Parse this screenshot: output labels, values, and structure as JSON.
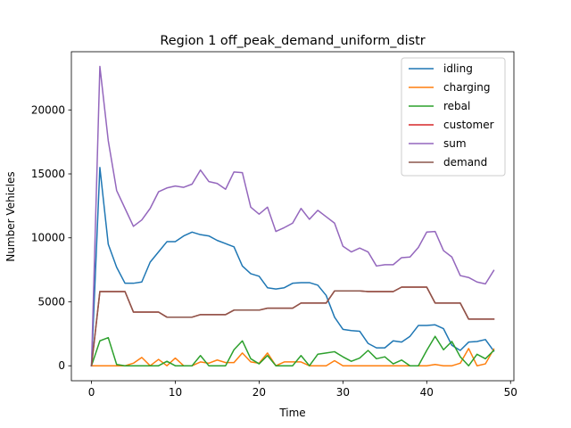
{
  "chart_data": {
    "type": "line",
    "title": "Region 1 off_peak_demand_uniform_distr",
    "xlabel": "Time",
    "ylabel": "Number Vehicles",
    "xlim": [
      -2.4,
      50.4
    ],
    "ylim": [
      -1170,
      24550
    ],
    "x_ticks": [
      0,
      10,
      20,
      30,
      40,
      50
    ],
    "y_ticks": [
      0,
      5000,
      10000,
      15000,
      20000
    ],
    "grid": false,
    "legend_position": "top-right",
    "x": [
      0,
      1,
      2,
      3,
      4,
      5,
      6,
      7,
      8,
      9,
      10,
      11,
      12,
      13,
      14,
      15,
      16,
      17,
      18,
      19,
      20,
      21,
      22,
      23,
      24,
      25,
      26,
      27,
      28,
      29,
      30,
      31,
      32,
      33,
      34,
      35,
      36,
      37,
      38,
      39,
      40,
      41,
      42,
      43,
      44,
      45,
      46,
      47,
      48
    ],
    "series": [
      {
        "name": "idling",
        "color": "#1f77b4",
        "values": [
          0,
          15500,
          9500,
          7700,
          6450,
          6450,
          6550,
          8100,
          8900,
          9700,
          9700,
          10150,
          10450,
          10250,
          10150,
          9800,
          9550,
          9300,
          7800,
          7200,
          7000,
          6100,
          6000,
          6100,
          6450,
          6500,
          6500,
          6300,
          5500,
          3800,
          2850,
          2750,
          2700,
          1750,
          1400,
          1400,
          1950,
          1850,
          2300,
          3150,
          3150,
          3200,
          2900,
          1600,
          1200,
          1850,
          1900,
          2050,
          1150
        ]
      },
      {
        "name": "charging",
        "color": "#ff7f0e",
        "values": [
          0,
          0,
          0,
          0,
          0,
          200,
          650,
          0,
          500,
          0,
          600,
          0,
          0,
          300,
          200,
          450,
          250,
          250,
          1000,
          300,
          200,
          1000,
          0,
          300,
          300,
          300,
          0,
          0,
          0,
          400,
          0,
          0,
          0,
          0,
          0,
          0,
          0,
          0,
          0,
          0,
          0,
          100,
          0,
          0,
          200,
          1350,
          0,
          150,
          1300
        ]
      },
      {
        "name": "rebal",
        "color": "#2ca02c",
        "values": [
          0,
          1950,
          2200,
          100,
          0,
          0,
          0,
          0,
          0,
          350,
          0,
          0,
          0,
          800,
          0,
          0,
          0,
          1250,
          1950,
          550,
          150,
          800,
          0,
          0,
          0,
          800,
          0,
          900,
          1000,
          1100,
          700,
          350,
          600,
          1200,
          550,
          700,
          150,
          450,
          0,
          0,
          1200,
          2300,
          1250,
          1900,
          700,
          0,
          900,
          550,
          1200
        ]
      },
      {
        "name": "customer",
        "color": "#d62728",
        "values": [
          0,
          5800,
          5800,
          5800,
          5800,
          4200,
          4200,
          4200,
          4200,
          3800,
          3800,
          3800,
          3800,
          4000,
          4000,
          4000,
          4000,
          4350,
          4350,
          4350,
          4350,
          4500,
          4500,
          4500,
          4500,
          4900,
          4900,
          4900,
          4900,
          5850,
          5850,
          5850,
          5850,
          5800,
          5800,
          5800,
          5800,
          6150,
          6150,
          6150,
          6150,
          4900,
          4900,
          4900,
          4900,
          3650,
          3650,
          3650,
          3650
        ]
      },
      {
        "name": "sum",
        "color": "#9467bd",
        "values": [
          0,
          23400,
          17600,
          13700,
          12300,
          10900,
          11400,
          12300,
          13600,
          13900,
          14050,
          13950,
          14200,
          15300,
          14400,
          14250,
          13800,
          15150,
          15100,
          12400,
          11850,
          12400,
          10500,
          10800,
          11150,
          12300,
          11450,
          12150,
          11650,
          11150,
          9350,
          8900,
          9200,
          8900,
          7800,
          7900,
          7900,
          8450,
          8500,
          9250,
          10450,
          10500,
          9000,
          8500,
          7050,
          6900,
          6550,
          6400,
          7450
        ]
      },
      {
        "name": "demand",
        "color": "#8c564b",
        "values": [
          0,
          5800,
          5800,
          5800,
          5800,
          4200,
          4200,
          4200,
          4200,
          3800,
          3800,
          3800,
          3800,
          4000,
          4000,
          4000,
          4000,
          4350,
          4350,
          4350,
          4350,
          4500,
          4500,
          4500,
          4500,
          4900,
          4900,
          4900,
          4900,
          5850,
          5850,
          5850,
          5850,
          5800,
          5800,
          5800,
          5800,
          6150,
          6150,
          6150,
          6150,
          4900,
          4900,
          4900,
          4900,
          3650,
          3650,
          3650,
          3650
        ]
      }
    ]
  }
}
